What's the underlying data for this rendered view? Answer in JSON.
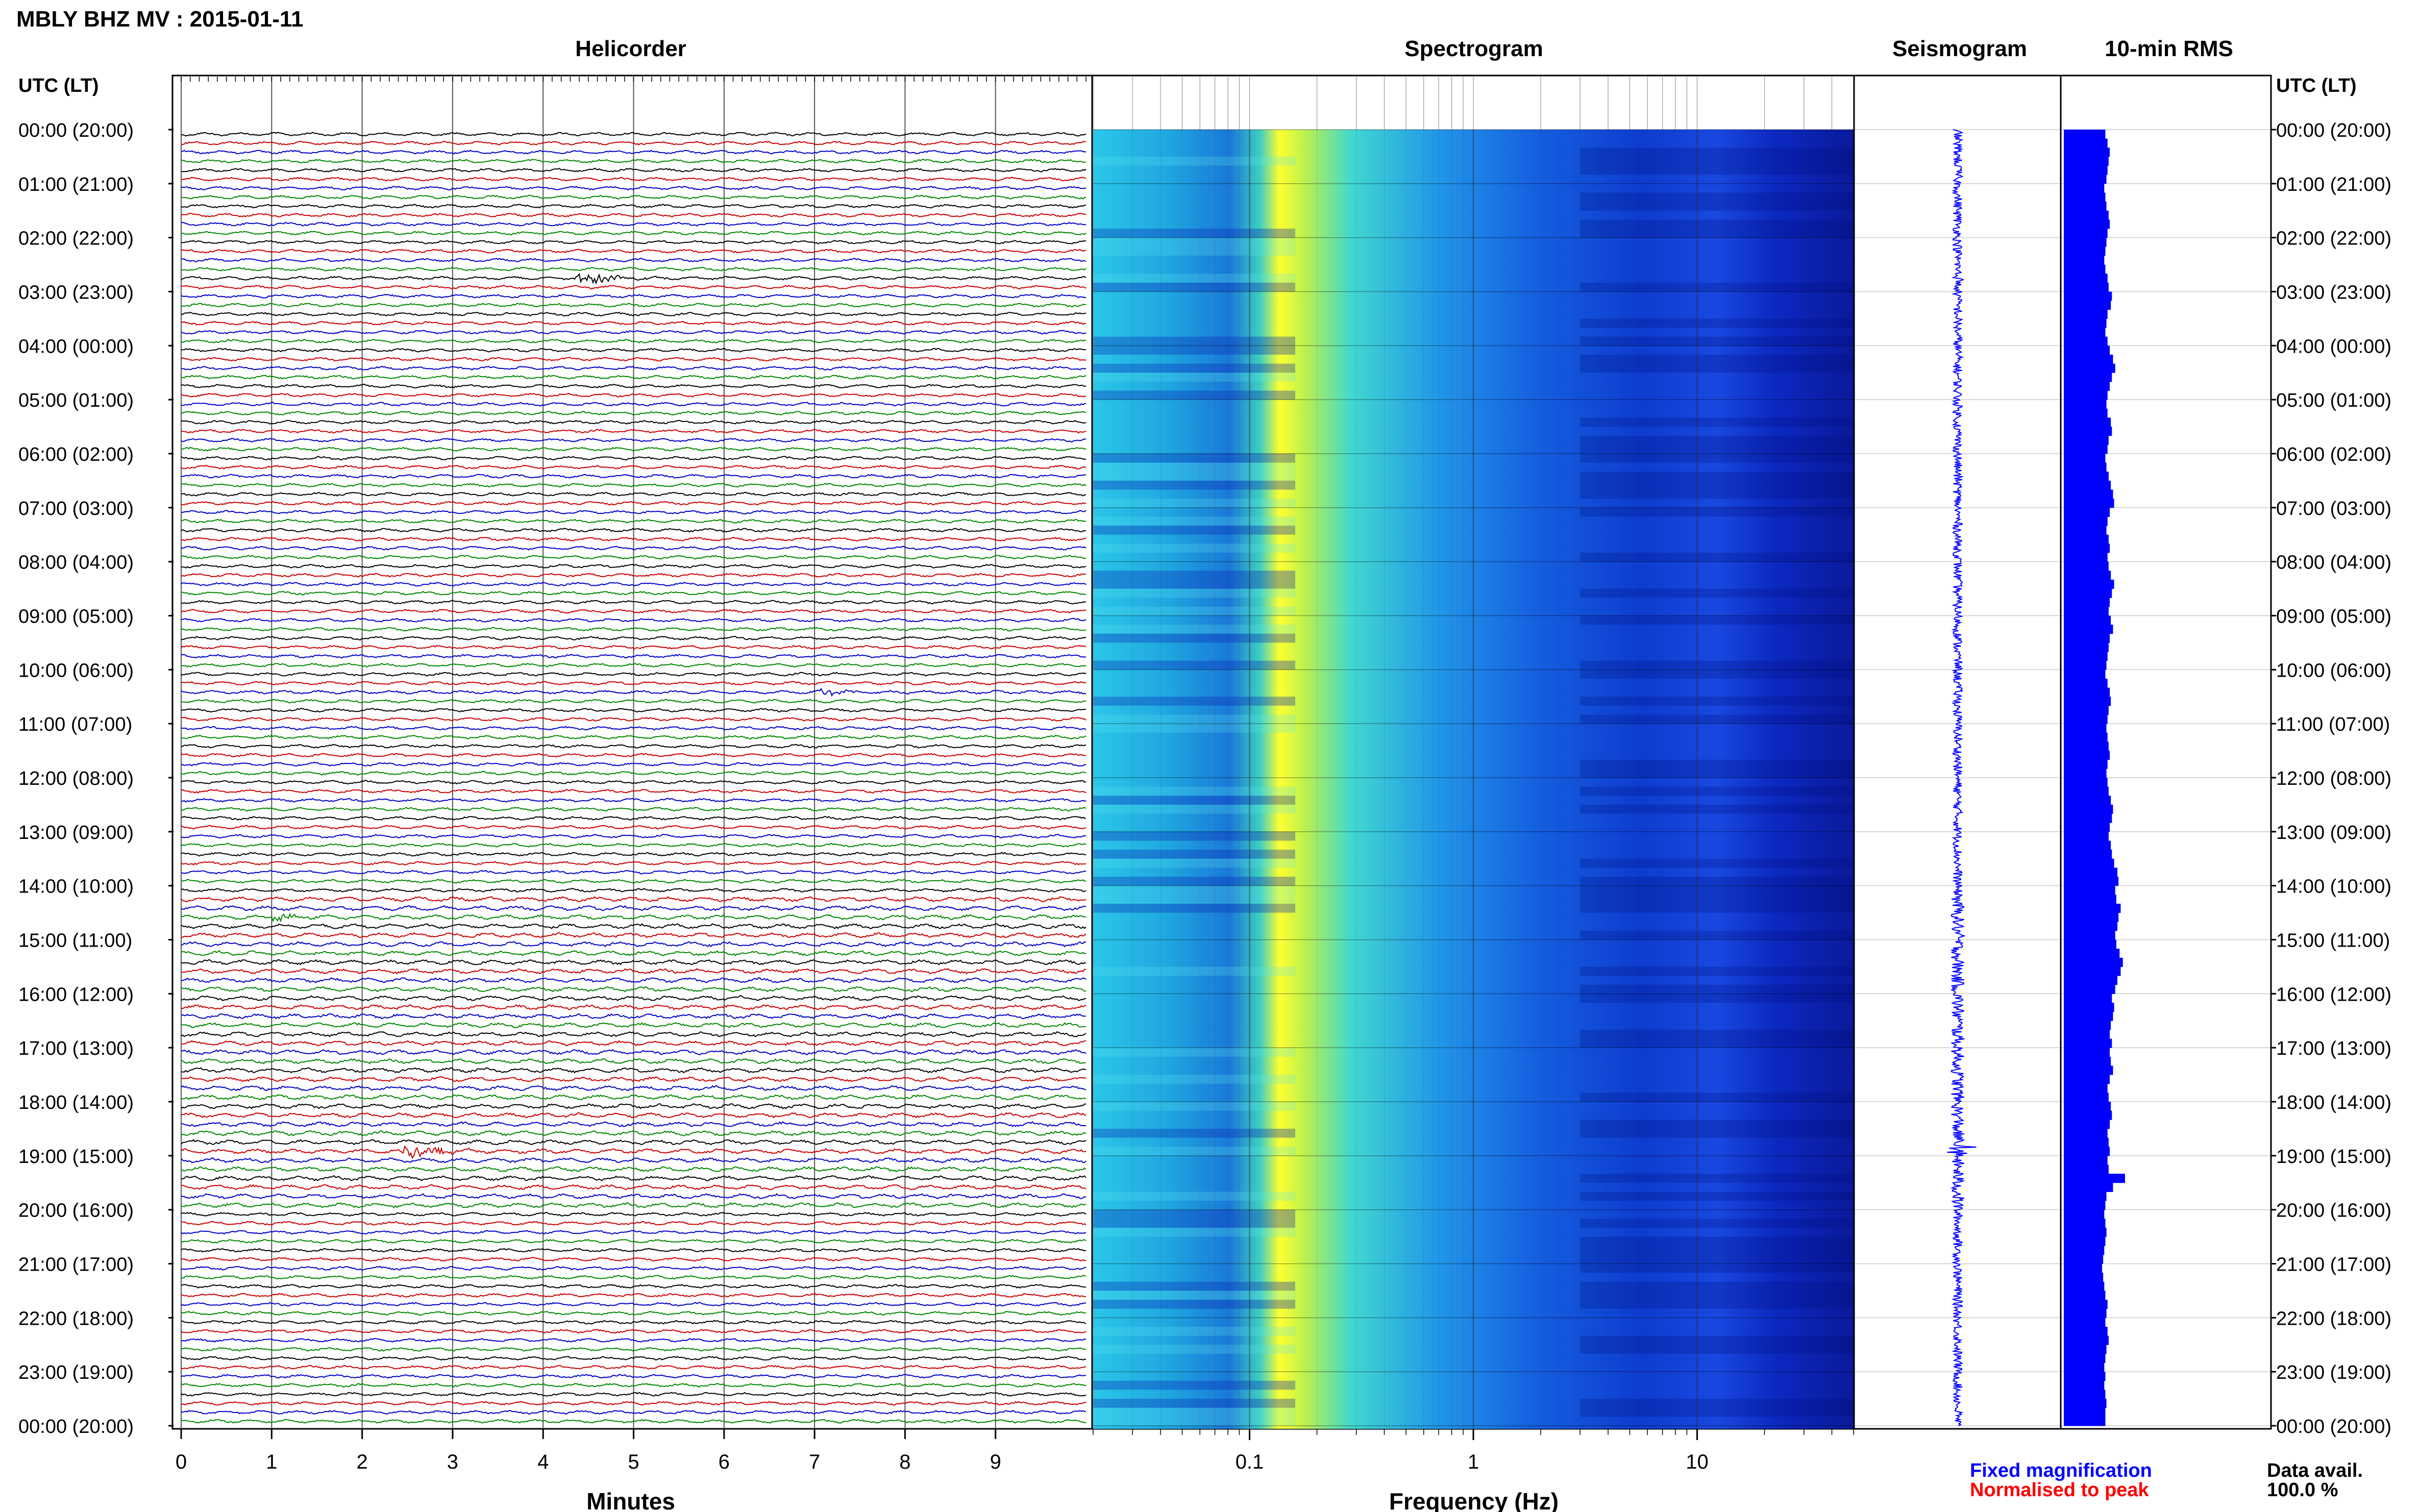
{
  "header": {
    "title": "MBLY BHZ MV : 2015-01-11",
    "utc_label_left": "UTC (LT)",
    "utc_label_right": "UTC (LT)"
  },
  "panels": {
    "helicorder": "Helicorder",
    "spectrogram": "Spectrogram",
    "seismogram": "Seismogram",
    "rms": "10-min RMS"
  },
  "footer": {
    "fixed_mag": "Fixed magnification",
    "normalised": "Normalised to peak",
    "data_avail_label": "Data avail.",
    "data_avail_value": "100.0 %",
    "fixed_color": "#0000ff",
    "normalised_color": "#ff0000"
  },
  "colors": {
    "trace_cycle": [
      "#000000",
      "#cc0000",
      "#0000cc",
      "#008800"
    ],
    "seismogram": "#0000ff",
    "rms": "#0000ff",
    "spectrogram_low": "#00008b",
    "spectrogram_high": "#ffff00"
  },
  "chart_data": [
    {
      "type": "line",
      "name": "helicorder",
      "title": "Helicorder",
      "xlabel": "Minutes",
      "xticks": [
        "0",
        "1",
        "2",
        "3",
        "4",
        "5",
        "6",
        "7",
        "8",
        "9"
      ],
      "xlim": [
        0,
        10
      ],
      "time_labels": [
        "00:00 (20:00)",
        "01:00 (21:00)",
        "02:00 (22:00)",
        "03:00 (23:00)",
        "04:00 (00:00)",
        "05:00 (01:00)",
        "06:00 (02:00)",
        "07:00 (03:00)",
        "08:00 (04:00)",
        "09:00 (05:00)",
        "10:00 (06:00)",
        "11:00 (07:00)",
        "12:00 (08:00)",
        "13:00 (09:00)",
        "14:00 (10:00)",
        "15:00 (11:00)",
        "16:00 (12:00)",
        "17:00 (13:00)",
        "18:00 (14:00)",
        "19:00 (15:00)",
        "20:00 (16:00)",
        "21:00 (17:00)",
        "22:00 (18:00)",
        "23:00 (19:00)",
        "00:00 (20:00)"
      ],
      "rows": 144,
      "minutes_per_row": 10,
      "events": [
        {
          "row": 16,
          "minute": 4.45,
          "amplitude": 2.5
        },
        {
          "row": 62,
          "minute": 7.1,
          "amplitude": 1.2
        },
        {
          "row": 87,
          "minute": 1.05,
          "amplitude": 1.4
        },
        {
          "row": 113,
          "minute": 2.5,
          "amplitude": 3.0
        }
      ]
    },
    {
      "type": "heatmap",
      "name": "spectrogram",
      "title": "Spectrogram",
      "xlabel": "Frequency (Hz)",
      "xscale": "log",
      "xlim": [
        0.02,
        50
      ],
      "xticks": [
        "0.1",
        "1",
        "10"
      ]
    },
    {
      "type": "line",
      "name": "seismogram",
      "title": "Seismogram"
    },
    {
      "type": "bar",
      "name": "rms",
      "title": "10-min RMS",
      "orientation": "horizontal",
      "bins": 144,
      "values": [
        0.38,
        0.4,
        0.42,
        0.41,
        0.4,
        0.39,
        0.37,
        0.38,
        0.39,
        0.41,
        0.42,
        0.4,
        0.39,
        0.38,
        0.37,
        0.38,
        0.4,
        0.41,
        0.44,
        0.43,
        0.4,
        0.39,
        0.38,
        0.4,
        0.42,
        0.45,
        0.47,
        0.44,
        0.42,
        0.4,
        0.39,
        0.4,
        0.43,
        0.44,
        0.41,
        0.4,
        0.38,
        0.39,
        0.41,
        0.43,
        0.45,
        0.46,
        0.42,
        0.4,
        0.39,
        0.41,
        0.42,
        0.4,
        0.41,
        0.43,
        0.46,
        0.44,
        0.42,
        0.41,
        0.43,
        0.45,
        0.42,
        0.41,
        0.4,
        0.39,
        0.38,
        0.4,
        0.42,
        0.43,
        0.41,
        0.4,
        0.39,
        0.4,
        0.41,
        0.42,
        0.4,
        0.39,
        0.4,
        0.41,
        0.43,
        0.45,
        0.44,
        0.42,
        0.41,
        0.43,
        0.44,
        0.46,
        0.49,
        0.5,
        0.47,
        0.48,
        0.52,
        0.5,
        0.49,
        0.47,
        0.48,
        0.51,
        0.54,
        0.52,
        0.49,
        0.47,
        0.44,
        0.46,
        0.45,
        0.43,
        0.42,
        0.44,
        0.42,
        0.43,
        0.45,
        0.42,
        0.4,
        0.41,
        0.43,
        0.44,
        0.42,
        0.4,
        0.41,
        0.42,
        0.4,
        0.41,
        0.56,
        0.45,
        0.39,
        0.38,
        0.37,
        0.38,
        0.39,
        0.38,
        0.37,
        0.36,
        0.35,
        0.36,
        0.37,
        0.38,
        0.4,
        0.39,
        0.38,
        0.4,
        0.41,
        0.39,
        0.38,
        0.37,
        0.38,
        0.37,
        0.38,
        0.39,
        0.38,
        0.38
      ]
    }
  ]
}
